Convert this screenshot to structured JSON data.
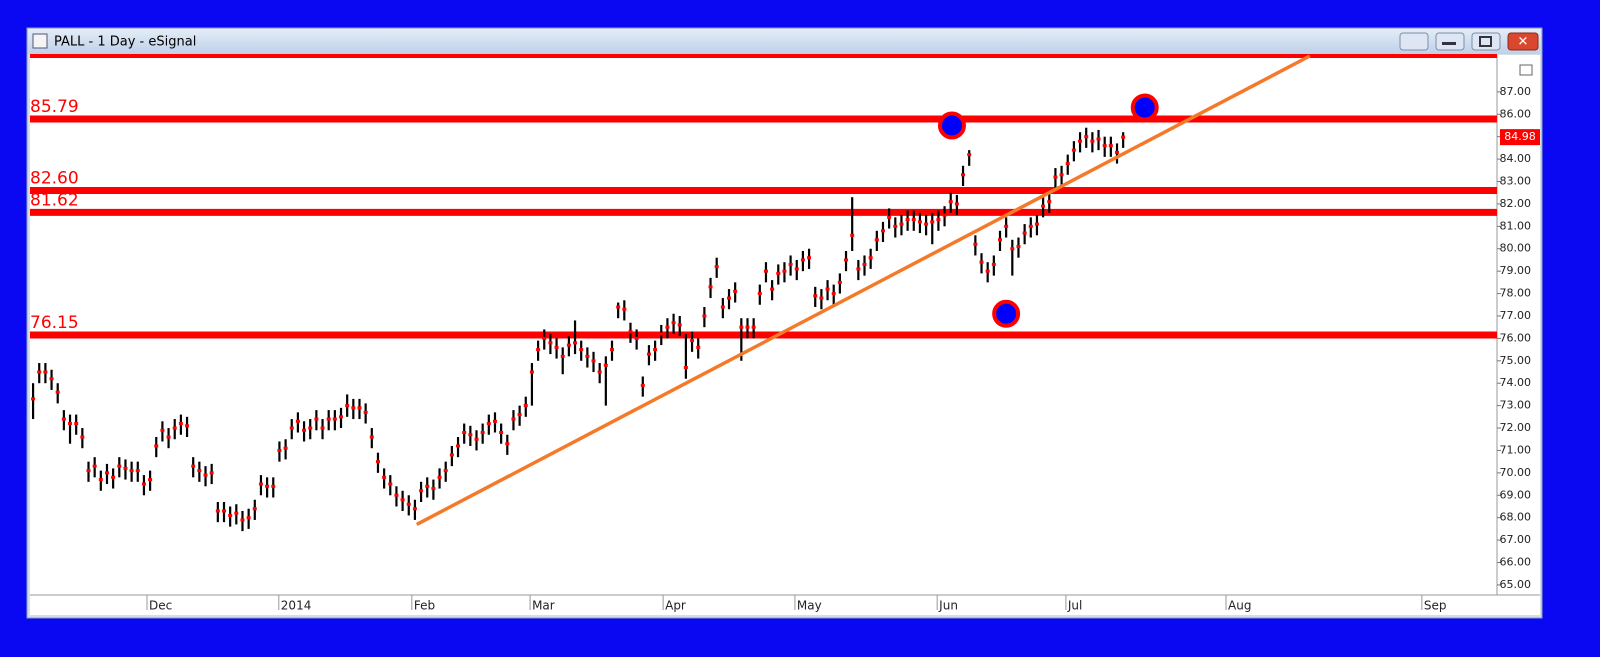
{
  "window_title": "PALL - 1 Day - eSignal",
  "chart_data": {
    "type": "hlc",
    "x": [
      0,
      1,
      2,
      3,
      4,
      5,
      6,
      7,
      8,
      9,
      10,
      11,
      12,
      13,
      14,
      15,
      16,
      17,
      18,
      19,
      20,
      21,
      22,
      23,
      24,
      25,
      26,
      27,
      28,
      29,
      30,
      31,
      32,
      33,
      34,
      35,
      36,
      37,
      38,
      39,
      40,
      41,
      42,
      43,
      44,
      45,
      46,
      47,
      48,
      49,
      50,
      51,
      52,
      53,
      54,
      55,
      56,
      57,
      58,
      59,
      60,
      61,
      62,
      63,
      64,
      65,
      66,
      67,
      68,
      69,
      70,
      71,
      72,
      73,
      74,
      75,
      76,
      77,
      78,
      79,
      80,
      81,
      82,
      83,
      84,
      85,
      86,
      87,
      88,
      89,
      90,
      91,
      92,
      93,
      94,
      95,
      96,
      97,
      98,
      99,
      100,
      101,
      102,
      103,
      104,
      105,
      106,
      107,
      108,
      109,
      110,
      111,
      112,
      113,
      114,
      115,
      116,
      117,
      118,
      119,
      120,
      121,
      122,
      123,
      124,
      125,
      126,
      127,
      128,
      129,
      130,
      131,
      132,
      133,
      134,
      135,
      136,
      137,
      138,
      139,
      140,
      141,
      142,
      143,
      144,
      145,
      146,
      147,
      148,
      149,
      150,
      151,
      152,
      153,
      154,
      155,
      156,
      157,
      158,
      159,
      160,
      161,
      162,
      163,
      164,
      165,
      166,
      167,
      168,
      169,
      170,
      171,
      172,
      173,
      174,
      175,
      176,
      177
    ],
    "high": [
      74.0,
      74.9,
      74.9,
      74.6,
      74.0,
      72.8,
      72.6,
      72.6,
      72.0,
      70.5,
      70.7,
      70.1,
      70.4,
      70.2,
      70.7,
      70.6,
      70.5,
      70.5,
      69.9,
      70.1,
      71.6,
      72.3,
      72.0,
      72.4,
      72.6,
      72.5,
      70.7,
      70.5,
      70.3,
      70.4,
      68.7,
      68.7,
      68.5,
      68.6,
      68.3,
      68.4,
      68.8,
      69.9,
      69.8,
      69.8,
      71.4,
      71.5,
      72.4,
      72.7,
      72.3,
      72.4,
      72.8,
      72.4,
      72.8,
      72.8,
      72.9,
      73.5,
      73.3,
      73.3,
      73.1,
      72.0,
      70.9,
      70.2,
      69.9,
      69.4,
      69.2,
      69.0,
      68.8,
      69.6,
      69.8,
      69.7,
      70.2,
      70.5,
      71.2,
      71.6,
      72.2,
      72.1,
      71.9,
      72.2,
      72.6,
      72.7,
      72.2,
      71.7,
      72.8,
      73.0,
      73.4,
      74.9,
      75.9,
      76.4,
      76.2,
      76.0,
      75.6,
      76.1,
      76.8,
      75.9,
      75.6,
      75.4,
      74.9,
      75.2,
      75.9,
      77.6,
      77.7,
      76.7,
      76.4,
      74.3,
      75.7,
      75.9,
      76.6,
      76.9,
      77.1,
      77.0,
      76.2,
      76.3,
      76.0,
      77.4,
      78.7,
      79.6,
      77.8,
      78.2,
      78.5,
      76.9,
      76.9,
      76.9,
      78.4,
      79.4,
      78.6,
      79.3,
      79.4,
      79.7,
      79.5,
      79.9,
      80.0,
      78.3,
      78.2,
      78.6,
      78.4,
      78.9,
      79.9,
      82.3,
      79.5,
      79.7,
      80.0,
      80.8,
      81.2,
      81.8,
      81.4,
      81.5,
      81.7,
      81.7,
      81.6,
      81.5,
      81.6,
      81.7,
      81.9,
      82.5,
      82.4,
      83.7,
      84.4,
      80.6,
      79.8,
      79.4,
      79.7,
      80.8,
      81.4,
      80.4,
      80.5,
      81.1,
      81.4,
      81.5,
      82.3,
      82.5,
      83.6,
      83.7,
      84.2,
      84.8,
      85.2,
      85.4,
      85.2,
      85.3,
      85.0,
      85.0,
      84.7,
      85.2
    ],
    "low": [
      72.4,
      74.0,
      74.0,
      73.7,
      73.1,
      71.9,
      71.3,
      71.7,
      71.1,
      69.6,
      69.8,
      69.2,
      69.5,
      69.3,
      69.8,
      69.7,
      69.6,
      69.6,
      69.0,
      69.2,
      70.7,
      71.4,
      71.1,
      71.5,
      71.7,
      71.6,
      69.8,
      69.6,
      69.4,
      69.5,
      67.8,
      67.8,
      67.6,
      67.7,
      67.4,
      67.5,
      67.9,
      69.0,
      68.9,
      68.9,
      70.5,
      70.6,
      71.5,
      71.8,
      71.4,
      71.5,
      71.9,
      71.5,
      71.9,
      71.9,
      72.0,
      72.5,
      72.4,
      72.4,
      72.2,
      71.1,
      70.0,
      69.3,
      69.0,
      68.5,
      68.3,
      68.1,
      67.9,
      68.7,
      68.9,
      68.8,
      69.3,
      69.6,
      70.3,
      70.7,
      71.3,
      71.2,
      71.0,
      71.3,
      71.7,
      71.8,
      71.3,
      70.8,
      71.9,
      72.1,
      72.5,
      73.0,
      75.0,
      75.5,
      75.3,
      75.1,
      74.4,
      75.2,
      75.3,
      75.0,
      74.7,
      74.5,
      74.0,
      73.0,
      75.0,
      76.9,
      76.8,
      75.8,
      75.5,
      73.4,
      74.8,
      75.0,
      75.7,
      76.0,
      76.2,
      76.1,
      74.2,
      75.4,
      75.1,
      76.5,
      77.8,
      78.7,
      76.9,
      77.3,
      77.6,
      75.0,
      76.0,
      76.0,
      77.5,
      78.5,
      77.7,
      78.4,
      78.5,
      78.8,
      78.6,
      79.0,
      79.1,
      77.4,
      77.3,
      77.7,
      77.5,
      78.0,
      79.0,
      79.9,
      78.6,
      78.8,
      79.1,
      79.9,
      80.3,
      80.9,
      80.5,
      80.6,
      80.8,
      80.8,
      80.7,
      80.6,
      80.2,
      80.8,
      81.0,
      81.6,
      81.5,
      82.8,
      83.7,
      79.7,
      78.9,
      78.5,
      78.8,
      79.9,
      80.5,
      78.8,
      79.6,
      80.2,
      80.5,
      80.6,
      81.4,
      81.6,
      82.7,
      82.8,
      83.3,
      83.9,
      84.3,
      84.5,
      84.3,
      84.4,
      84.1,
      84.1,
      83.8,
      84.5
    ],
    "close": [
      73.3,
      74.5,
      74.5,
      74.2,
      73.6,
      72.4,
      72.2,
      72.2,
      71.6,
      70.1,
      70.3,
      69.7,
      70.0,
      69.8,
      70.3,
      70.2,
      70.1,
      70.1,
      69.5,
      69.7,
      71.2,
      71.9,
      71.6,
      72.0,
      72.2,
      72.1,
      70.3,
      70.1,
      69.9,
      70.0,
      68.3,
      68.3,
      68.1,
      68.2,
      67.9,
      68.0,
      68.4,
      69.5,
      69.4,
      69.4,
      71.0,
      71.1,
      72.0,
      72.3,
      71.9,
      72.0,
      72.4,
      72.0,
      72.4,
      72.4,
      72.5,
      73.0,
      72.9,
      72.9,
      72.7,
      71.6,
      70.5,
      69.8,
      69.5,
      69.0,
      68.8,
      68.6,
      68.4,
      69.2,
      69.4,
      69.3,
      69.8,
      70.1,
      70.8,
      71.2,
      71.8,
      71.7,
      71.5,
      71.8,
      72.2,
      72.3,
      71.8,
      71.3,
      72.4,
      72.6,
      73.0,
      74.5,
      75.5,
      76.0,
      75.8,
      75.6,
      75.2,
      75.7,
      75.8,
      75.5,
      75.2,
      75.0,
      74.5,
      74.8,
      75.5,
      77.4,
      77.3,
      76.3,
      76.0,
      73.9,
      75.3,
      75.5,
      76.2,
      76.5,
      76.7,
      76.6,
      74.7,
      75.9,
      75.6,
      77.0,
      78.3,
      79.2,
      77.4,
      77.8,
      78.1,
      76.5,
      76.5,
      76.5,
      78.0,
      79.0,
      78.2,
      78.9,
      79.0,
      79.3,
      79.1,
      79.5,
      79.6,
      77.9,
      77.8,
      78.2,
      78.0,
      78.5,
      79.5,
      80.6,
      79.1,
      79.3,
      79.6,
      80.4,
      80.8,
      81.4,
      81.0,
      81.1,
      81.3,
      81.3,
      81.2,
      81.1,
      81.2,
      81.3,
      81.5,
      82.1,
      82.0,
      83.3,
      84.2,
      80.2,
      79.4,
      79.0,
      79.3,
      80.4,
      81.0,
      80.0,
      80.1,
      80.7,
      81.0,
      81.1,
      81.9,
      82.1,
      83.2,
      83.3,
      83.8,
      84.4,
      84.8,
      85.0,
      84.8,
      84.9,
      84.6,
      84.6,
      84.3,
      84.98
    ],
    "bar_color": "#000000",
    "close_color": "#ff0000",
    "xlim": [
      -0.5,
      237.7
    ],
    "xticks": [
      {
        "value": 18.5,
        "label": "Dec"
      },
      {
        "value": 39.9,
        "label": "2014"
      },
      {
        "value": 61.5,
        "label": "Feb"
      },
      {
        "value": 80.7,
        "label": "Mar"
      },
      {
        "value": 102.3,
        "label": "Apr"
      },
      {
        "value": 123.7,
        "label": "May"
      },
      {
        "value": 146.8,
        "label": "Jun"
      },
      {
        "value": 167.7,
        "label": "Jul"
      },
      {
        "value": 193.7,
        "label": "Aug"
      },
      {
        "value": 225.5,
        "label": "Sep"
      }
    ],
    "ylim": [
      64.55,
      88.6
    ],
    "yticks": [
      {
        "value": 65,
        "label": "65.00"
      },
      {
        "value": 66,
        "label": "66.00"
      },
      {
        "value": 67,
        "label": "67.00"
      },
      {
        "value": 68,
        "label": "68.00"
      },
      {
        "value": 69,
        "label": "69.00"
      },
      {
        "value": 70,
        "label": "70.00"
      },
      {
        "value": 71,
        "label": "71.00"
      },
      {
        "value": 72,
        "label": "72.00"
      },
      {
        "value": 73,
        "label": "73.00"
      },
      {
        "value": 74,
        "label": "74.00"
      },
      {
        "value": 75,
        "label": "75.00"
      },
      {
        "value": 76,
        "label": "76.00"
      },
      {
        "value": 77,
        "label": "77.00"
      },
      {
        "value": 78,
        "label": "78.00"
      },
      {
        "value": 79,
        "label": "79.00"
      },
      {
        "value": 80,
        "label": "80.00"
      },
      {
        "value": 81,
        "label": "81.00"
      },
      {
        "value": 82,
        "label": "82.00"
      },
      {
        "value": 83,
        "label": "83.00"
      },
      {
        "value": 84,
        "label": "84.00"
      },
      {
        "value": 85,
        "label": "85.00"
      },
      {
        "value": 86,
        "label": "86.00"
      },
      {
        "value": 87,
        "label": "87.00"
      }
    ],
    "levels": [
      {
        "value": 85.79,
        "label": "85.79"
      },
      {
        "value": 82.6,
        "label": "82.60"
      },
      {
        "value": 81.62,
        "label": "81.62"
      },
      {
        "value": 76.15,
        "label": "76.15"
      }
    ],
    "level_color": "#ff0000",
    "last_price": 84.98,
    "trendline": {
      "x": [
        62.3,
        207.3
      ],
      "y": [
        67.7,
        88.6
      ],
      "color": "#f47a2a"
    },
    "markers": {
      "x": [
        149.2,
        180.5,
        158.0
      ],
      "y": [
        85.5,
        86.3,
        77.1
      ],
      "color": "#0000ff",
      "edge": "#ff0000"
    }
  }
}
